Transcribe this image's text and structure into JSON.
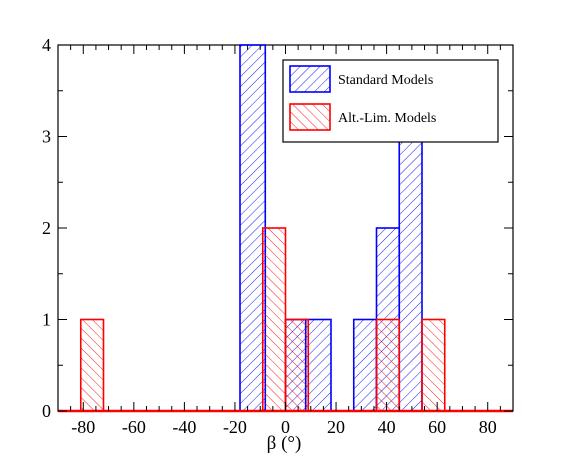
{
  "chart_data": {
    "type": "bar",
    "subtype": "histogram",
    "xlabel": "β (°)",
    "ylabel": "",
    "xlim": [
      -90,
      90
    ],
    "ylim": [
      0,
      4
    ],
    "xticks": [
      -80,
      -60,
      -40,
      -20,
      0,
      20,
      40,
      60,
      80
    ],
    "yticks": [
      0,
      1,
      2,
      3,
      4
    ],
    "grid": false,
    "legend_position": "top-right",
    "series": [
      {
        "name": "Standard Models",
        "color": "#0000ff",
        "hatch": "diagonal-forward",
        "bins": [
          {
            "x0": -18,
            "x1": -8,
            "value": 4
          },
          {
            "x0": 0,
            "x1": 8,
            "value": 1
          },
          {
            "x0": 8,
            "x1": 18,
            "value": 1
          },
          {
            "x0": 27,
            "x1": 36,
            "value": 1
          },
          {
            "x0": 36,
            "x1": 45,
            "value": 2
          },
          {
            "x0": 45,
            "x1": 54,
            "value": 3
          }
        ]
      },
      {
        "name": "Alt.-Lim. Models",
        "color": "#ff0000",
        "hatch": "diagonal-backward",
        "bins": [
          {
            "x0": -81,
            "x1": -72,
            "value": 1
          },
          {
            "x0": -9,
            "x1": 0,
            "value": 2
          },
          {
            "x0": 0,
            "x1": 9,
            "value": 1
          },
          {
            "x0": 36,
            "x1": 45,
            "value": 1
          },
          {
            "x0": 54,
            "x1": 63,
            "value": 1
          }
        ]
      }
    ]
  }
}
